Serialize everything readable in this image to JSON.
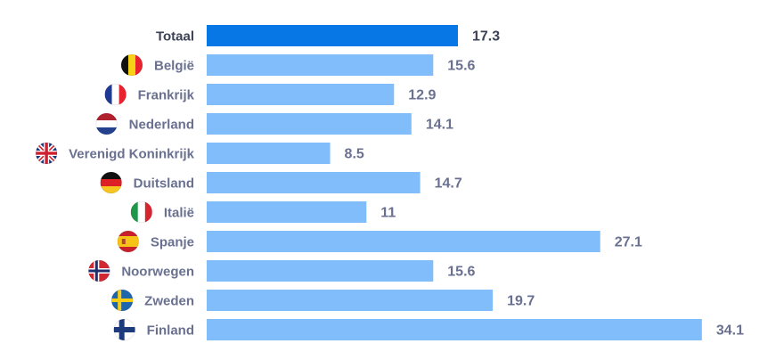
{
  "chart_data": {
    "type": "bar",
    "orientation": "horizontal",
    "title": "",
    "xlabel": "",
    "ylabel": "",
    "xlim": [
      0,
      34.1
    ],
    "grid": false,
    "categories": [
      "Totaal",
      "België",
      "Frankrijk",
      "Nederland",
      "Verenigd Koninkrijk",
      "Duitsland",
      "Italië",
      "Spanje",
      "Noorwegen",
      "Zweden",
      "Finland"
    ],
    "values": [
      17.3,
      15.6,
      12.9,
      14.1,
      8.5,
      14.7,
      11,
      27.1,
      15.6,
      19.7,
      34.1
    ],
    "value_labels": [
      "17.3",
      "15.6",
      "12.9",
      "14.1",
      "8.5",
      "14.7",
      "11",
      "27.1",
      "15.6",
      "19.7",
      "34.1"
    ],
    "flags": [
      "",
      "belgium-flag",
      "france-flag",
      "netherlands-flag",
      "uk-flag",
      "germany-flag",
      "italy-flag",
      "spain-flag",
      "norway-flag",
      "sweden-flag",
      "finland-flag"
    ],
    "colors": {
      "total": "#0877e6",
      "country": "#80bdfa",
      "total_label": "#3c4257",
      "label": "#6a7190"
    }
  }
}
